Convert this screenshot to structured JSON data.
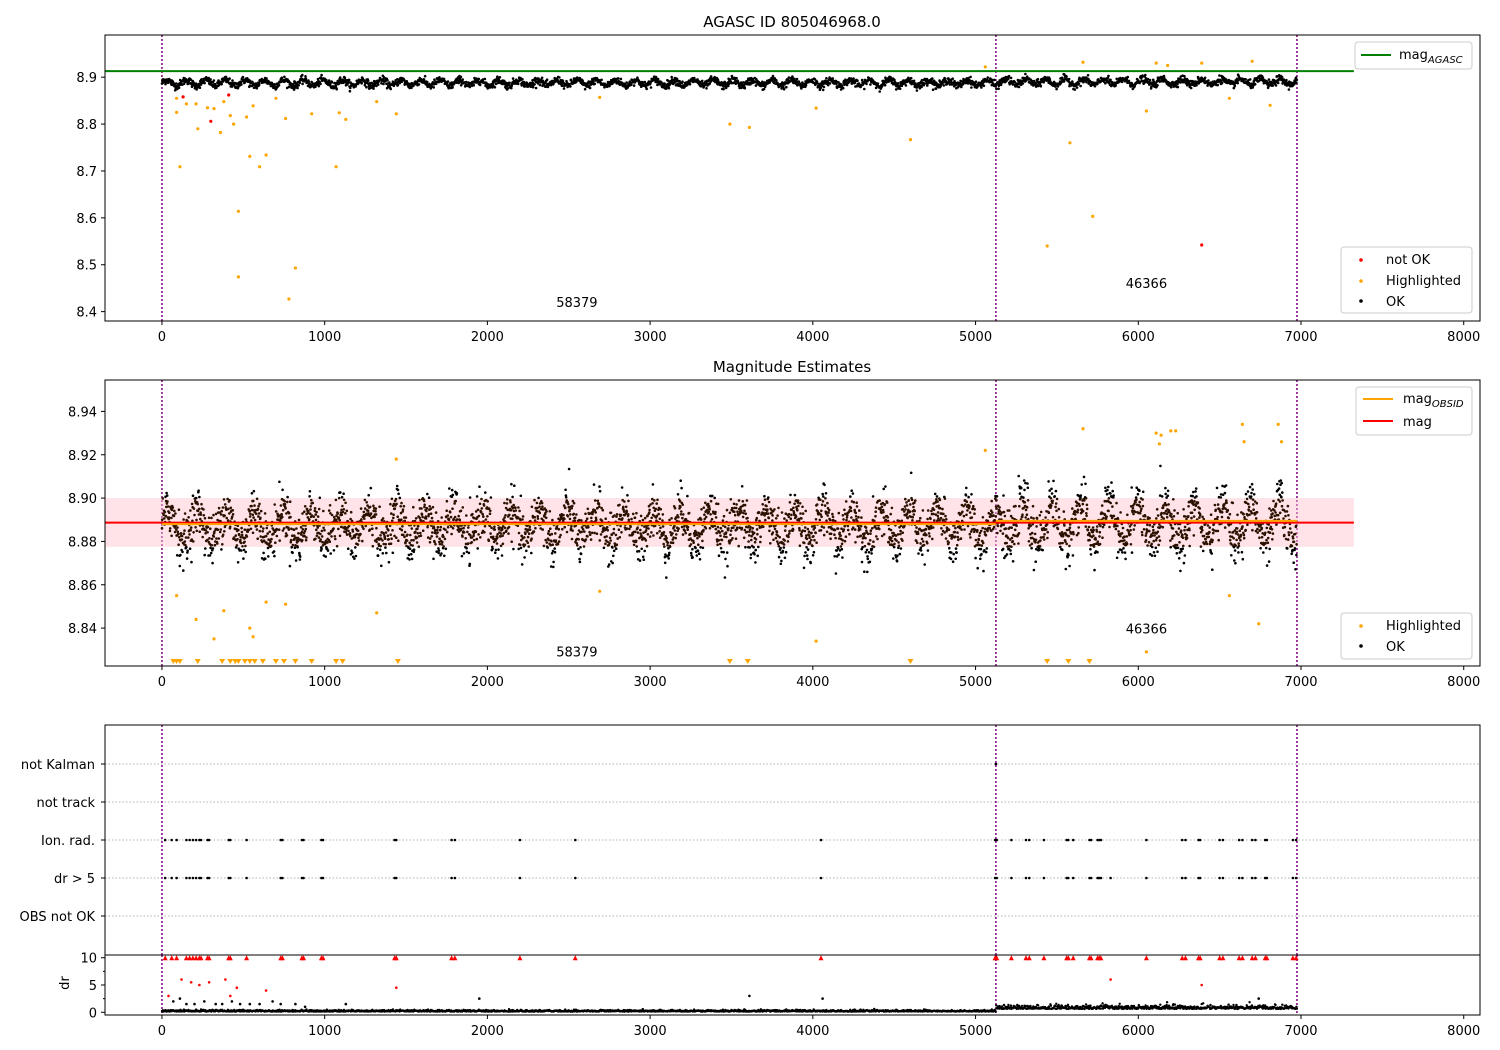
{
  "chart_data": [
    {
      "type": "scatter",
      "title": "AGASC ID 805046968.0",
      "xlabel": "",
      "ylabel": "",
      "xlim": [
        -350,
        8100
      ],
      "ylim": [
        8.38,
        8.99
      ],
      "xticks": [
        0,
        1000,
        2000,
        3000,
        4000,
        5000,
        6000,
        7000,
        8000
      ],
      "yticks": [
        8.4,
        8.5,
        8.6,
        8.7,
        8.8,
        8.9
      ],
      "ytick_labels": [
        "8.4",
        "8.5",
        "8.6",
        "8.7",
        "8.8",
        "8.9"
      ],
      "vlines": [
        0,
        5125,
        6975
      ],
      "hline": {
        "name": "mag_AGASC",
        "y": 8.913,
        "x_range": [
          -350,
          7325
        ],
        "color": "#008000"
      },
      "legend_top": {
        "main": "mag",
        "sub": "AGASC"
      },
      "legend_bottom": [
        "not OK",
        "Highlighted",
        "OK"
      ],
      "obsid_labels": [
        {
          "text": "58379",
          "x": 2550,
          "y": 8.41
        },
        {
          "text": "46366",
          "x": 6050,
          "y": 8.45
        }
      ],
      "series": [
        {
          "name": "OK",
          "color": "#000000",
          "baseline": 8.888,
          "points": "dense band between 8.86 and 8.92 for x in 0–6975"
        },
        {
          "name": "Highlighted",
          "color": "#ffa500",
          "x": [
            90,
            90,
            110,
            150,
            210,
            220,
            280,
            320,
            360,
            380,
            420,
            440,
            470,
            470,
            520,
            540,
            560,
            600,
            640,
            700,
            760,
            780,
            820,
            920,
            1070,
            1090,
            1130,
            1320,
            1440,
            2690,
            3490,
            3610,
            4020,
            4600,
            5060,
            5440,
            5580,
            5660,
            5720,
            6050,
            6110,
            6180,
            6390,
            6560,
            6700,
            6810
          ],
          "y": [
            8.855,
            8.825,
            8.709,
            8.843,
            8.843,
            8.79,
            8.835,
            8.833,
            8.782,
            8.848,
            8.818,
            8.8,
            8.614,
            8.474,
            8.815,
            8.731,
            8.839,
            8.709,
            8.734,
            8.855,
            8.812,
            8.427,
            8.493,
            8.822,
            8.709,
            8.824,
            8.81,
            8.848,
            8.822,
            8.857,
            8.8,
            8.793,
            8.834,
            8.767,
            8.922,
            8.54,
            8.76,
            8.932,
            8.603,
            8.828,
            8.93,
            8.925,
            8.93,
            8.855,
            8.934,
            8.84
          ]
        },
        {
          "name": "not OK",
          "color": "#ff0000",
          "x": [
            130,
            300,
            410,
            6390
          ],
          "y": [
            8.858,
            8.806,
            8.862,
            8.542
          ]
        }
      ]
    },
    {
      "type": "scatter",
      "title": "Magnitude Estimates",
      "xlabel": "",
      "ylabel": "",
      "xlim": [
        -350,
        8100
      ],
      "ylim": [
        8.8225,
        8.9545
      ],
      "xticks": [
        0,
        1000,
        2000,
        3000,
        4000,
        5000,
        6000,
        7000,
        8000
      ],
      "yticks": [
        8.84,
        8.86,
        8.88,
        8.9,
        8.92,
        8.94
      ],
      "ytick_labels": [
        "8.84",
        "8.86",
        "8.88",
        "8.90",
        "8.92",
        "8.94"
      ],
      "vlines": [
        0,
        5125,
        6975
      ],
      "band": {
        "y": [
          8.8775,
          8.9
        ],
        "x_range": [
          -350,
          7325
        ],
        "color": "#ffc0cb"
      },
      "legend_top": [
        {
          "main": "mag",
          "sub": "OBSID",
          "color": "#ffa500"
        },
        {
          "main": "mag",
          "sub": "",
          "color": "#ff0000"
        }
      ],
      "legend_bottom": [
        "Highlighted",
        "OK"
      ],
      "obsid_labels": [
        {
          "text": "58379",
          "x": 2550,
          "y": 8.827
        },
        {
          "text": "46366",
          "x": 6050,
          "y": 8.8375
        }
      ],
      "series": [
        {
          "name": "mag",
          "color": "#ff0000",
          "type": "hline",
          "y": 8.8887,
          "x_range": [
            -350,
            7325
          ]
        },
        {
          "name": "mag_OBSID",
          "color": "#ffa500",
          "type": "steps",
          "segments": [
            {
              "x": [
                0,
                5125
              ],
              "y": 8.888
            },
            {
              "x": [
                5125,
                6975
              ],
              "y": 8.8895
            }
          ]
        },
        {
          "name": "OK",
          "color": "#000000",
          "baseline": 8.887,
          "points": "dense scatter between 8.857 and 8.925 for x in 0–6975"
        },
        {
          "name": "Highlighted",
          "color": "#ffa500",
          "x": [
            90,
            210,
            320,
            380,
            540,
            560,
            640,
            760,
            1320,
            1440,
            2690,
            4020,
            5060,
            5660,
            6050,
            6110,
            6130,
            6140,
            6200,
            6230,
            6560,
            6640,
            6650,
            6740,
            6860,
            6880
          ],
          "y": [
            8.855,
            8.844,
            8.835,
            8.848,
            8.84,
            8.836,
            8.852,
            8.851,
            8.847,
            8.918,
            8.857,
            8.834,
            8.922,
            8.932,
            8.829,
            8.93,
            8.925,
            8.929,
            8.931,
            8.931,
            8.855,
            8.934,
            8.926,
            8.842,
            8.934,
            8.926
          ]
        },
        {
          "name": "Highlighted below range",
          "color": "#ffa500",
          "marker": "triangle-down",
          "x": [
            70,
            90,
            110,
            220,
            370,
            420,
            450,
            470,
            510,
            540,
            570,
            620,
            700,
            750,
            820,
            920,
            1070,
            1110,
            1450,
            3490,
            3600,
            4600,
            5440,
            5570,
            5700
          ]
        }
      ]
    },
    {
      "type": "scatter",
      "title": "",
      "xlabel": "",
      "ylabel": "",
      "xlim": [
        -350,
        8100
      ],
      "categories": [
        "not Kalman",
        "not track",
        "Ion. rad.",
        "dr > 5",
        "OBS not OK"
      ],
      "vlines": [
        0,
        5125,
        6975
      ],
      "series": [
        {
          "name": "not Kalman",
          "x": [
            5125
          ]
        },
        {
          "name": "not track",
          "x": []
        },
        {
          "name": "Ion. rad.",
          "x": [
            20,
            60,
            90,
            150,
            170,
            190,
            210,
            230,
            240,
            280,
            290,
            410,
            420,
            520,
            730,
            740,
            860,
            870,
            980,
            990,
            1430,
            1440,
            1780,
            1800,
            2200,
            2540,
            4050,
            5120,
            5130,
            5220,
            5310,
            5330,
            5420,
            5560,
            5570,
            5600,
            5700,
            5710,
            5750,
            5760,
            5770,
            6050,
            6270,
            6290,
            6370,
            6380,
            6500,
            6520,
            6620,
            6640,
            6700,
            6720,
            6780,
            6790,
            6950,
            6970
          ]
        },
        {
          "name": "dr > 5",
          "x": [
            20,
            60,
            90,
            150,
            170,
            190,
            210,
            230,
            240,
            280,
            290,
            410,
            420,
            520,
            730,
            740,
            860,
            870,
            980,
            990,
            1430,
            1440,
            1780,
            1800,
            2200,
            2540,
            4050,
            5120,
            5130,
            5220,
            5310,
            5330,
            5420,
            5560,
            5570,
            5600,
            5700,
            5710,
            5750,
            5760,
            5770,
            5830,
            6050,
            6270,
            6290,
            6370,
            6380,
            6500,
            6520,
            6620,
            6640,
            6700,
            6720,
            6780,
            6790,
            6950,
            6970
          ]
        },
        {
          "name": "OBS not OK",
          "x": []
        }
      ]
    },
    {
      "type": "scatter",
      "title": "",
      "xlabel": "",
      "ylabel": "dr",
      "xlim": [
        -350,
        8100
      ],
      "ylim": [
        -0.5,
        10.5
      ],
      "yticks": [
        0,
        5,
        10
      ],
      "ytick_labels": [
        "0",
        "5",
        "10"
      ],
      "xticks": [
        0,
        1000,
        2000,
        3000,
        4000,
        5000,
        6000,
        7000,
        8000
      ],
      "vlines": [
        0,
        5125,
        6975
      ],
      "series": [
        {
          "name": "OK",
          "color": "#000000",
          "baseline": 0.3,
          "points": "near zero, larger (~1) after x=5125"
        },
        {
          "name": "clipped",
          "color": "#ff0000",
          "marker": "triangle-up",
          "y": 10,
          "x": [
            20,
            60,
            90,
            150,
            170,
            190,
            210,
            230,
            240,
            280,
            290,
            410,
            420,
            520,
            730,
            740,
            860,
            870,
            980,
            990,
            1430,
            1440,
            1780,
            1800,
            2200,
            2540,
            4050,
            5120,
            5130,
            5220,
            5310,
            5330,
            5420,
            5560,
            5570,
            5600,
            5700,
            5710,
            5750,
            5760,
            5770,
            6050,
            6270,
            6290,
            6370,
            6380,
            6500,
            6520,
            6620,
            6640,
            6700,
            6720,
            6780,
            6790,
            6950,
            6970
          ]
        },
        {
          "name": "red",
          "color": "#ff0000",
          "x": [
            40,
            120,
            180,
            230,
            290,
            390,
            420,
            460,
            640,
            1440,
            5830,
            6390
          ],
          "y": [
            3.0,
            6.0,
            5.5,
            5.0,
            5.5,
            6.0,
            3.0,
            4.5,
            4.0,
            4.5,
            6.0,
            5.0
          ]
        },
        {
          "name": "black",
          "color": "#000000",
          "x": [
            70,
            110,
            150,
            200,
            260,
            330,
            370,
            430,
            480,
            540,
            600,
            680,
            730,
            820,
            880,
            1130,
            1950,
            3610,
            4060,
            6740
          ],
          "y": [
            2.0,
            2.5,
            1.5,
            1.5,
            2.0,
            1.5,
            1.5,
            2.0,
            1.5,
            1.5,
            1.5,
            2.0,
            1.5,
            1.5,
            1.0,
            1.5,
            2.5,
            3.0,
            2.5,
            2.5
          ]
        }
      ]
    }
  ]
}
